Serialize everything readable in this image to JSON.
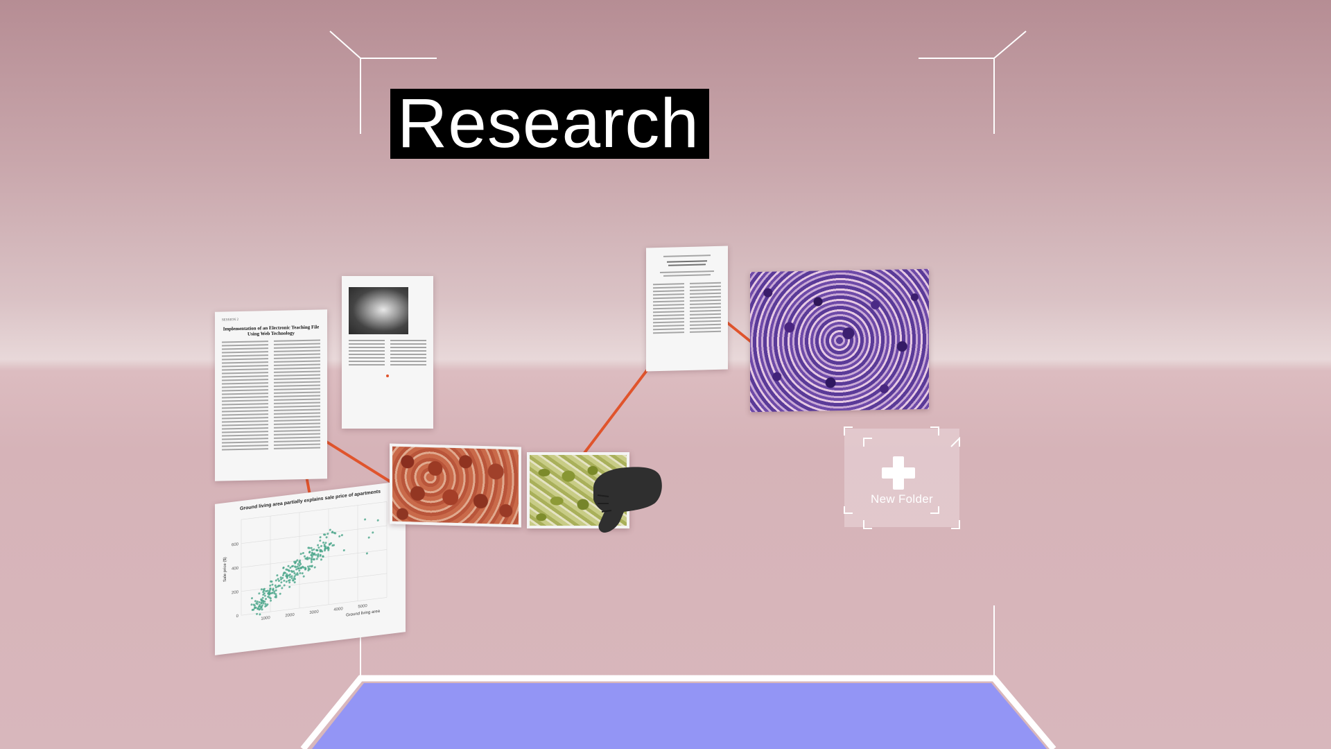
{
  "space": {
    "title": "Research"
  },
  "documents": {
    "paper_left": {
      "section": "SESSION 2",
      "title": "Implementation of an Electronic Teaching File Using Web Technology"
    }
  },
  "chart_card": {
    "chart_data": {
      "type": "scatter",
      "title": "Ground living area partially explains sale price of apartments",
      "xlabel": "Ground living area",
      "ylabel": "Sale price ($)",
      "x_ticks": [
        "1000",
        "2000",
        "3000",
        "4000",
        "5000"
      ],
      "y_ticks": [
        "0",
        "200",
        "400",
        "600"
      ],
      "point_color": "#4aa58a"
    }
  },
  "new_folder": {
    "label": "New Folder",
    "icon": "plus-icon"
  },
  "hand_cursor": {
    "icon": "hand-grab-icon",
    "color": "#2f2f2f"
  },
  "colors": {
    "connector": "#e0542c",
    "floor": "#9395f5",
    "frame": "#ffffff"
  }
}
